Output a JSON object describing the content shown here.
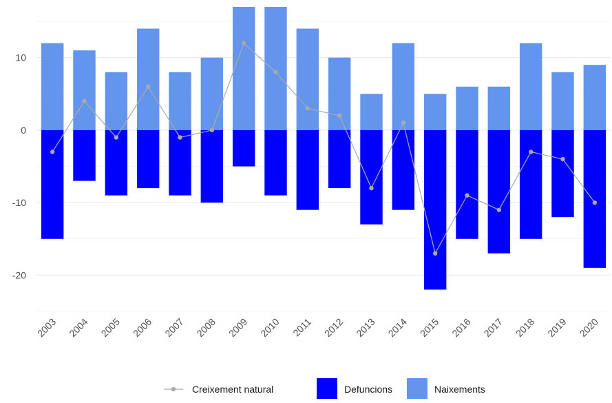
{
  "chart_data": {
    "type": "bar",
    "categories": [
      "2003",
      "2004",
      "2005",
      "2006",
      "2007",
      "2008",
      "2009",
      "2010",
      "2011",
      "2012",
      "2013",
      "2014",
      "2015",
      "2016",
      "2017",
      "2018",
      "2019",
      "2020"
    ],
    "series": [
      {
        "name": "Naixements",
        "kind": "bar",
        "color": "#6495ED",
        "values": [
          12,
          11,
          8,
          14,
          8,
          10,
          17,
          17,
          14,
          10,
          5,
          12,
          5,
          6,
          6,
          12,
          8,
          9
        ]
      },
      {
        "name": "Defuncions",
        "kind": "bar",
        "color": "#0000FF",
        "values": [
          -15,
          -7,
          -9,
          -8,
          -9,
          -10,
          -5,
          -9,
          -11,
          -8,
          -13,
          -11,
          -22,
          -15,
          -17,
          -15,
          -12,
          -19
        ]
      },
      {
        "name": "Creixement natural",
        "kind": "line",
        "color": "#A9A9A9",
        "values": [
          -3,
          4,
          -1,
          6,
          -1,
          0,
          12,
          8,
          3,
          2,
          -8,
          1,
          -17,
          -9,
          -11,
          -3,
          -4,
          -10
        ]
      }
    ],
    "y_ticks": [
      10,
      0,
      -10,
      -20
    ],
    "ylim": [
      -25,
      17
    ],
    "grid": true,
    "legend": {
      "position": "bottom",
      "items": [
        {
          "label": "Creixement natural",
          "color": "#A9A9A9",
          "shape": "line-point"
        },
        {
          "label": "Defuncions",
          "color": "#0000FF",
          "shape": "box"
        },
        {
          "label": "Naixements",
          "color": "#6495ED",
          "shape": "box"
        }
      ]
    }
  }
}
